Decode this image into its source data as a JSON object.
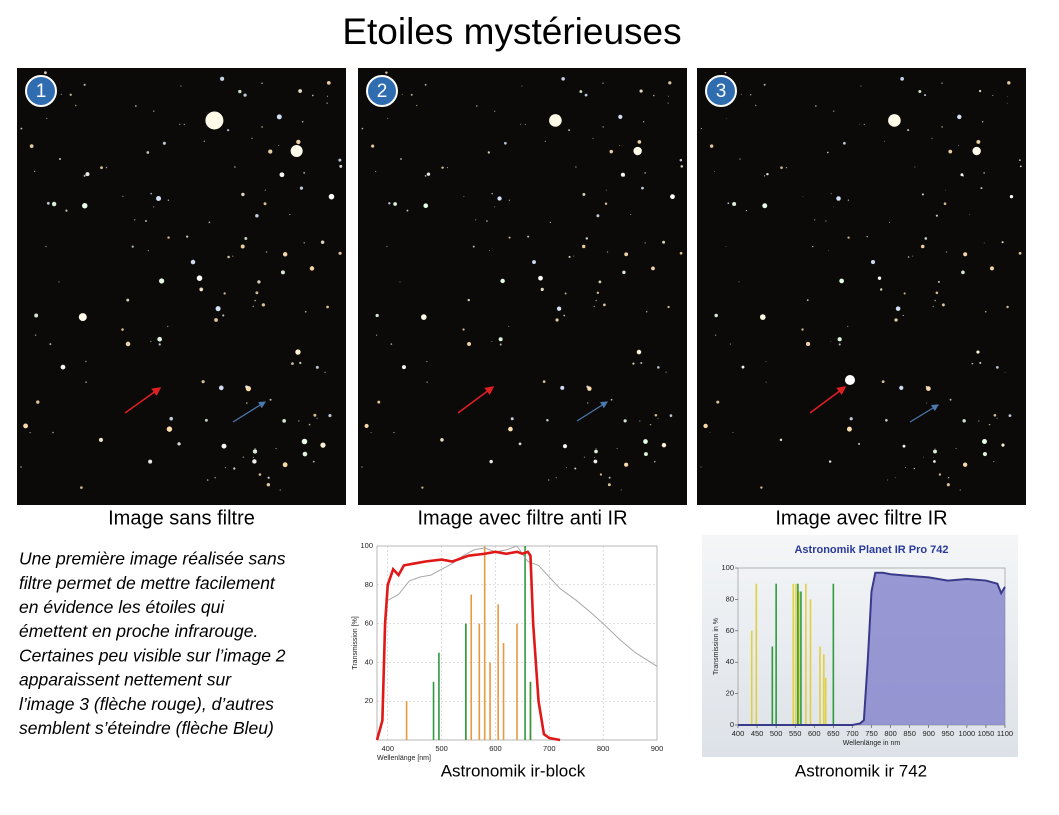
{
  "title": "Etoiles mystérieuses",
  "panels": [
    {
      "number": "1",
      "caption": "Image sans filtre"
    },
    {
      "number": "2",
      "caption": "Image avec filtre anti IR"
    },
    {
      "number": "3",
      "caption": "Image avec filtre IR"
    }
  ],
  "description": [
    "Une première image réalisée sans",
    "filtre permet de mettre facilement",
    "en évidence les étoiles qui",
    "émettent en proche infrarouge.",
    "Certaines peu visible sur l’image 2",
    "apparaissent nettement sur",
    "l’image 3 (flèche rouge), d’autres",
    "semblent s’éteindre (flèche Bleu)"
  ],
  "charts": [
    {
      "type": "line",
      "caption": "Astronomik ir-block",
      "x_label": "Wellenlänge [nm]",
      "y_label": "Transmission [%]",
      "xlim": [
        380,
        900
      ],
      "ylim": [
        0,
        100
      ],
      "xticks": [
        400,
        500,
        600,
        700,
        800,
        900
      ],
      "yticks": [
        20,
        40,
        60,
        80,
        100
      ],
      "grid": true,
      "series": [
        {
          "color": "#a8a8a8",
          "x": [
            400,
            420,
            440,
            460,
            480,
            500,
            520,
            540,
            560,
            580,
            600,
            620,
            640,
            660,
            680,
            700,
            720,
            750,
            780,
            800,
            830,
            860,
            900
          ],
          "values": [
            72,
            75,
            82,
            84,
            85,
            88,
            91,
            95,
            98,
            99,
            97,
            98,
            100,
            92,
            90,
            84,
            78,
            72,
            65,
            60,
            52,
            45,
            38
          ]
        },
        {
          "color": "#e01818",
          "x": [
            380,
            390,
            395,
            400,
            410,
            420,
            430,
            450,
            470,
            500,
            520,
            550,
            580,
            600,
            620,
            640,
            650,
            660,
            665,
            670,
            680,
            690,
            700,
            720
          ],
          "values": [
            0,
            10,
            60,
            80,
            88,
            85,
            90,
            91,
            92,
            93,
            92,
            95,
            96,
            97,
            96,
            97,
            96,
            97,
            95,
            60,
            20,
            3,
            1,
            0
          ]
        }
      ],
      "spectral_lines": [
        {
          "color": "#e89a40",
          "x": [
            435,
            545,
            555,
            570,
            580,
            590,
            605,
            615,
            640,
            665
          ],
          "values": [
            20,
            60,
            75,
            60,
            100,
            40,
            70,
            50,
            60,
            30
          ]
        },
        {
          "color": "#2e9a3e",
          "x": [
            485,
            495,
            545,
            655,
            665
          ],
          "values": [
            30,
            45,
            60,
            100,
            30
          ]
        }
      ]
    },
    {
      "type": "area",
      "title": "Astronomik Planet IR Pro 742",
      "caption": "Astronomik ir 742",
      "x_label": "Wellenlänge in nm",
      "y_label": "Transmission in %",
      "xlim": [
        400,
        1100
      ],
      "ylim": [
        0,
        100
      ],
      "xticks": [
        400,
        450,
        500,
        550,
        600,
        650,
        700,
        750,
        800,
        850,
        900,
        950,
        1000,
        1050,
        1100
      ],
      "yticks": [
        0,
        20,
        40,
        60,
        80,
        100
      ],
      "grid": false,
      "series": [
        {
          "color": "#3a3a8a",
          "x": [
            400,
            700,
            720,
            730,
            740,
            750,
            760,
            780,
            800,
            850,
            900,
            950,
            1000,
            1050,
            1080,
            1090,
            1100
          ],
          "values": [
            0,
            0,
            1,
            3,
            40,
            85,
            97,
            97,
            96,
            95,
            94,
            92,
            93,
            92,
            90,
            84,
            88
          ]
        }
      ],
      "spectral_lines": [
        {
          "color": "#e0d040",
          "x": [
            436,
            448,
            545,
            552,
            560,
            578,
            590,
            615,
            625,
            630
          ],
          "values": [
            60,
            90,
            90,
            90,
            85,
            90,
            80,
            50,
            45,
            30
          ]
        },
        {
          "color": "#2e9a3e",
          "x": [
            490,
            500,
            557,
            565,
            650
          ],
          "values": [
            50,
            90,
            90,
            85,
            90
          ]
        }
      ]
    }
  ]
}
